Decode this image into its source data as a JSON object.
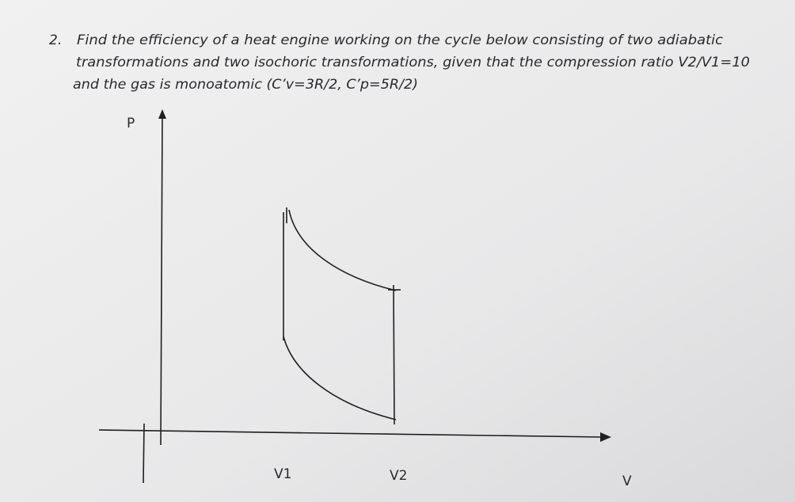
{
  "problem": {
    "number": "2.",
    "lines": [
      "Find the efficiency of a heat engine working on the cycle below consisting of two adiabatic",
      "transformations and two isochoric transformations, given that the compression ratio V2/V1=10",
      "and the gas is monoatomic (C’v=3R/2, C’p=5R/2)"
    ]
  },
  "diagram": {
    "y_axis_label": "P",
    "x_axis_label": "V",
    "v1_label": "V1",
    "v2_label": "V2"
  }
}
